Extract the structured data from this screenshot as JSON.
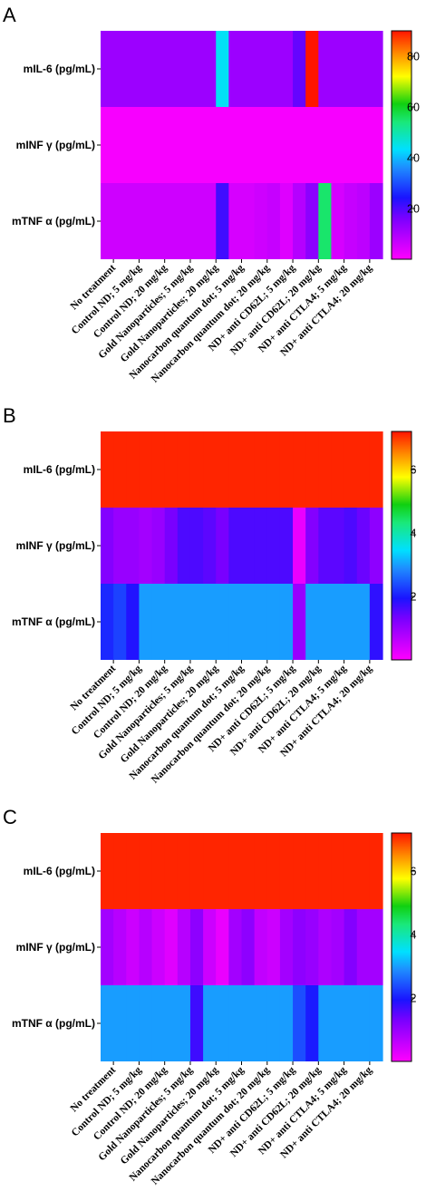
{
  "chart_data": [
    {
      "type": "heatmap",
      "panel_label": "A",
      "rows": [
        "mIL-6 (pg/mL)",
        "mINF γ (pg/mL)",
        "mTNF α (pg/mL)"
      ],
      "columns": [
        "No treatment",
        "Control ND; 5 mg/kg",
        "Control ND; 20 mg/kg",
        "Gold Nanoparticles; 5 mg/kg",
        "Gold Nanoparticles; 20 mg/kg",
        "Nanocarbon quantum dot; 5 mg/kg",
        "Nanocarbon quantum dot; 20 mg/kg",
        "ND+ anti CD62L; 5 mg/kg",
        "ND+ anti CD62L; 20 mg/kg",
        "ND+ anti CTLA4; 5 mg/kg",
        "ND+ anti CTLA4; 20 mg/kg"
      ],
      "cells_per_column": 2,
      "values": [
        [
          12,
          12,
          12,
          12,
          12,
          12,
          12,
          12,
          12,
          44,
          12,
          12,
          12,
          12,
          12,
          18,
          90,
          12,
          12,
          12,
          12,
          12
        ],
        [
          1,
          1,
          1,
          1,
          1,
          1,
          1,
          1,
          1,
          1,
          1,
          1,
          1,
          1,
          1,
          1,
          1,
          1,
          1,
          1,
          1,
          1
        ],
        [
          6,
          6,
          6,
          6,
          6,
          6,
          6,
          6,
          6,
          21,
          5,
          5,
          6,
          7,
          4,
          9,
          14,
          55,
          5,
          7,
          8,
          12
        ]
      ],
      "colorbar": {
        "min": 0,
        "max": 90,
        "ticks": [
          20,
          40,
          60,
          80
        ]
      }
    },
    {
      "type": "heatmap",
      "panel_label": "B",
      "rows": [
        "mIL-6 (pg/mL)",
        "mINF γ (pg/mL)",
        "mTNF α (pg/mL)"
      ],
      "columns": [
        "No treatment",
        "Control ND; 5 mg/kg",
        "Control ND; 20 mg/kg",
        "Gold Nanoparticles; 5 mg/kg",
        "Gold Nanoparticles; 20 mg/kg",
        "Nanocarbon quantum dot; 5 mg/kg",
        "Nanocarbon quantum dot; 20 mg/kg",
        "ND+ anti CD62L; 5 mg/kg",
        "ND+ anti CD62L; 20 mg/kg",
        "ND+ anti CTLA4; 5 mg/kg",
        "ND+ anti CTLA4; 20 mg/kg"
      ],
      "cells_per_column": 2,
      "values": [
        [
          7.1,
          7.1,
          7.1,
          7.1,
          7.1,
          7.1,
          7.1,
          7.1,
          7.1,
          7.1,
          7.1,
          7.1,
          7.1,
          7.1,
          7.1,
          7.1,
          7.1,
          7.1,
          7.1,
          7.1,
          7.1,
          7.1
        ],
        [
          1.2,
          1.0,
          1.0,
          0.9,
          1.0,
          1.3,
          1.6,
          1.6,
          1.5,
          1.3,
          1.6,
          1.6,
          1.6,
          1.6,
          1.6,
          0.2,
          1.2,
          1.5,
          1.5,
          1.6,
          1.4,
          1.1
        ],
        [
          2.1,
          2.3,
          1.9,
          3.0,
          3.0,
          3.0,
          3.0,
          3.0,
          3.0,
          3.0,
          3.0,
          3.0,
          3.0,
          3.0,
          3.0,
          1.0,
          3.0,
          3.0,
          3.0,
          3.0,
          3.0,
          1.8
        ]
      ],
      "colorbar": {
        "min": 0,
        "max": 7.2,
        "ticks": [
          2,
          4,
          6
        ]
      }
    },
    {
      "type": "heatmap",
      "panel_label": "C",
      "rows": [
        "mIL-6 (pg/mL)",
        "mINF γ (pg/mL)",
        "mTNF α (pg/mL)"
      ],
      "columns": [
        "No treatment",
        "Control ND; 5 mg/kg",
        "Control ND; 20 mg/kg",
        "Gold Nanoparticles; 5 mg/kg",
        "Gold Nanoparticles; 20 mg/kg",
        "Nanocarbon quantum dot; 5 mg/kg",
        "Nanocarbon quantum dot; 20 mg/kg",
        "ND+ anti CD62L; 5 mg/kg",
        "ND+ anti CD62L; 20 mg/kg",
        "ND+ anti CTLA4; 5 mg/kg",
        "ND+ anti CTLA4; 20 mg/kg"
      ],
      "cells_per_column": 2,
      "values": [
        [
          7.1,
          7.1,
          7.1,
          7.1,
          7.1,
          7.1,
          7.1,
          7.1,
          7.1,
          7.1,
          7.1,
          7.1,
          7.1,
          7.1,
          7.1,
          7.1,
          7.1,
          7.1,
          7.1,
          7.1,
          7.1,
          7.1
        ],
        [
          0.9,
          0.7,
          0.5,
          0.7,
          0.5,
          0.3,
          0.7,
          1.1,
          0.5,
          0.2,
          0.9,
          1.1,
          0.6,
          0.5,
          0.9,
          1.1,
          1.0,
          0.8,
          0.9,
          1.2,
          0.9,
          0.9
        ],
        [
          3.0,
          3.0,
          3.0,
          3.0,
          3.0,
          3.0,
          3.0,
          1.7,
          3.0,
          3.0,
          3.0,
          3.0,
          3.0,
          3.0,
          3.0,
          2.4,
          2.0,
          3.0,
          3.0,
          3.0,
          3.0,
          3.0
        ]
      ],
      "colorbar": {
        "min": 0,
        "max": 7.2,
        "ticks": [
          2,
          4,
          6
        ]
      }
    }
  ]
}
